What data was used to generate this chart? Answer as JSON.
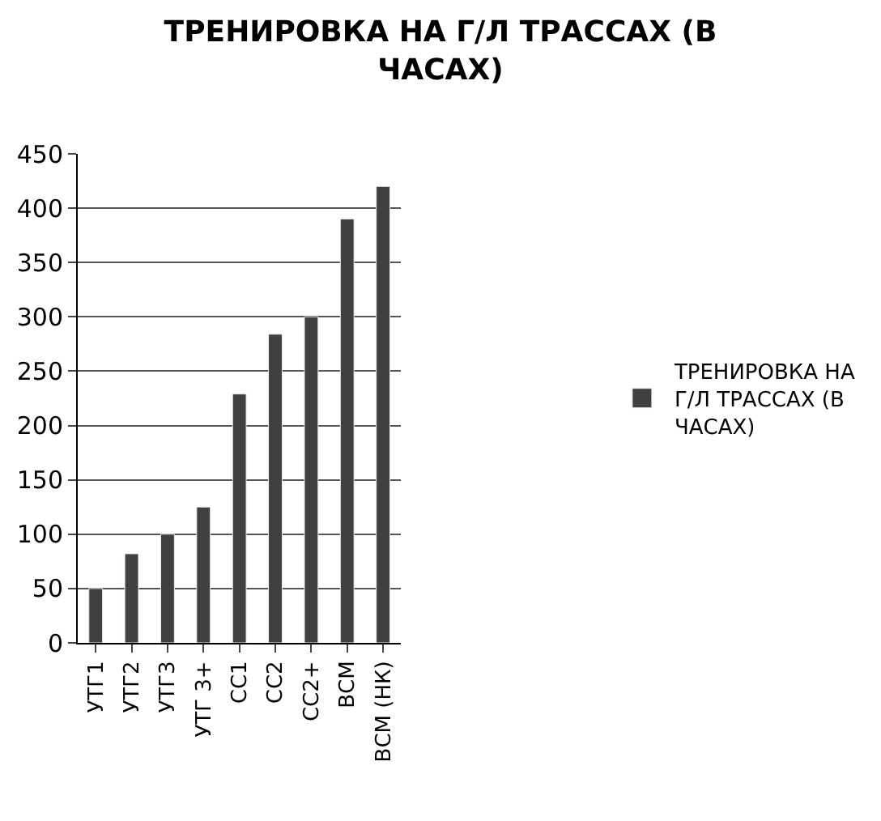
{
  "chart_data": {
    "type": "bar",
    "title": "ТРЕНИРОВКА НА Г/Л ТРАССАХ (В ЧАСАХ)",
    "categories": [
      "УТГ1",
      "УТГ2",
      "УТГ3",
      "УТГ 3+",
      "СС1",
      "СС2",
      "СС2+",
      "ВСМ",
      "ВСМ (НК)"
    ],
    "series": [
      {
        "name": "ТРЕНИРОВКА НА Г/Л ТРАССАХ (В ЧАСАХ)",
        "color": "#404040",
        "values": [
          50,
          82,
          100,
          125,
          229,
          284,
          300,
          390,
          420
        ]
      }
    ],
    "ylim": [
      0,
      450
    ],
    "yticks": [
      0,
      50,
      100,
      150,
      200,
      250,
      300,
      350,
      400,
      450
    ],
    "grid": "y",
    "legend": "right"
  }
}
